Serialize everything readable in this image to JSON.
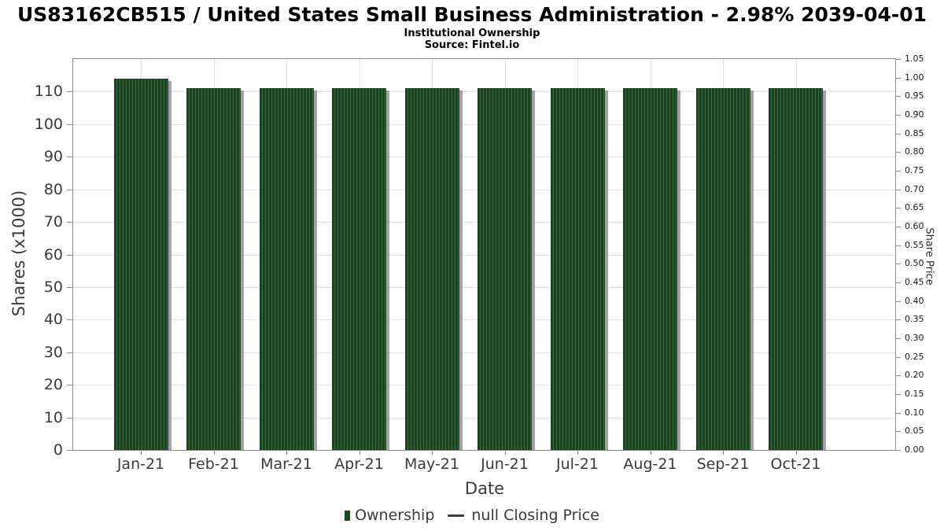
{
  "chart_data": {
    "type": "bar",
    "title": "US83162CB515 / United States Small Business Administration - 2.98% 2039-04-01",
    "subtitle": "Institutional Ownership",
    "source": "Source: Fintel.io",
    "xlabel": "Date",
    "categories": [
      "Jan-21",
      "Feb-21",
      "Mar-21",
      "Apr-21",
      "May-21",
      "Jun-21",
      "Jul-21",
      "Aug-21",
      "Sep-21",
      "Oct-21"
    ],
    "series": [
      {
        "name": "Ownership",
        "values": [
          114,
          111,
          111,
          111,
          111,
          111,
          111,
          111,
          111,
          111
        ]
      }
    ],
    "axes": {
      "left": {
        "label": "Shares (x1000)",
        "range": [
          0,
          120
        ],
        "ticks": [
          0,
          10,
          20,
          30,
          40,
          50,
          60,
          70,
          80,
          90,
          100,
          110
        ]
      },
      "right": {
        "label": "Share Price",
        "range": [
          0,
          1.05
        ],
        "ticks": [
          "0.00",
          "0.05",
          "0.10",
          "0.15",
          "0.20",
          "0.25",
          "0.30",
          "0.35",
          "0.40",
          "0.45",
          "0.50",
          "0.55",
          "0.60",
          "0.65",
          "0.70",
          "0.75",
          "0.80",
          "0.85",
          "0.90",
          "0.95",
          "1.00",
          "1.05"
        ]
      }
    },
    "legend": [
      {
        "label": "Ownership",
        "marker": "square",
        "color": "#1d4824"
      },
      {
        "label": "null Closing Price",
        "marker": "line",
        "color": "#3f3f3f"
      }
    ],
    "grid": true,
    "legend_position": "bottom-center",
    "colors": {
      "bar": "#1a4420",
      "bar_hatch": "#2d5634",
      "bar_shadow": "#8c8c8c",
      "gridline": "#e2e2e2",
      "spine": "#8c8c8c",
      "tick_text": "#3a3a3a"
    }
  }
}
